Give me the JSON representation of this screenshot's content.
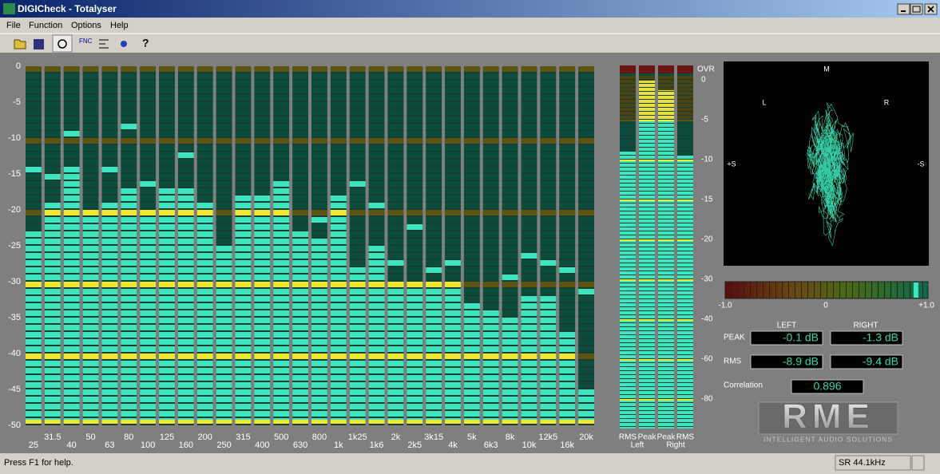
{
  "window": {
    "title": "DIGICheck - Totalyser"
  },
  "menu": [
    "File",
    "Function",
    "Options",
    "Help"
  ],
  "status_bar": {
    "help": "Press F1 for help.",
    "sample_rate": "SR 44.1kHz"
  },
  "chart_data": [
    {
      "type": "bar",
      "categories": [
        "25",
        "31.5",
        "40",
        "50",
        "63",
        "80",
        "100",
        "125",
        "160",
        "200",
        "250",
        "315",
        "400",
        "500",
        "630",
        "800",
        "1k",
        "1k25",
        "1k6",
        "2k",
        "2k5",
        "3k15",
        "4k",
        "5k",
        "6k3",
        "8k",
        "10k",
        "12k5",
        "16k",
        "20k"
      ],
      "values": [
        -23,
        -19,
        -14,
        -21,
        -19,
        -17,
        -21,
        -17,
        -17,
        -19,
        -25,
        -18,
        -19,
        -16,
        -23,
        -24,
        -18,
        -28,
        -25,
        -30,
        -31,
        -30,
        -31,
        -33,
        -34,
        -35,
        -32,
        -32,
        -37,
        -45
      ],
      "peak_hold": [
        -14,
        -15,
        -9,
        -21,
        -14,
        -8,
        -16,
        -17,
        -12,
        -19,
        -25,
        -18,
        -18,
        -16,
        -23,
        -21,
        -18,
        -16,
        -19,
        -27,
        -22,
        -28,
        -27,
        -33,
        -34,
        -29,
        -26,
        -27,
        -28,
        -31
      ],
      "ylim": [
        -50,
        0
      ],
      "yticks": [
        0,
        -5,
        -10,
        -15,
        -20,
        -25,
        -30,
        -35,
        -40,
        -45,
        -50
      ],
      "color": "#3ee6c0"
    },
    {
      "type": "level_meter",
      "categories": [
        "RMS",
        "Peak",
        "Peak",
        "RMS"
      ],
      "channels": [
        "Left",
        "Right"
      ],
      "values": [
        -8.9,
        -0.1,
        -1.3,
        -9.4
      ],
      "value_labels": [
        "-8.9 dB",
        "-0.1 dB",
        "-1.3 dB",
        "-9.4 dB"
      ],
      "overload_label": "OVR",
      "ylim": [
        -80,
        0
      ],
      "yticks": [
        0,
        -5,
        -10,
        -15,
        -20,
        -30,
        -40,
        -60,
        -80
      ],
      "color": "#3ee6c0"
    },
    {
      "type": "correlation_meter",
      "title": "Correlation",
      "value": 0.896,
      "value_label": "0.896",
      "xlim": [
        -1,
        1
      ],
      "xticks": [
        {
          "value": -1,
          "label": "-1.0"
        },
        0,
        {
          "value": 1,
          "label": "+1.0"
        }
      ]
    }
  ],
  "readouts": {
    "columns": [
      "LEFT",
      "RIGHT"
    ],
    "rows": [
      "PEAK",
      "RMS"
    ]
  },
  "goniometer": {
    "top": "M",
    "left": "L",
    "right": "R",
    "side_left": "+S",
    "side_right": "-S"
  },
  "logo": {
    "name": "RME",
    "tagline": "INTELLIGENT AUDIO SOLUTIONS"
  }
}
